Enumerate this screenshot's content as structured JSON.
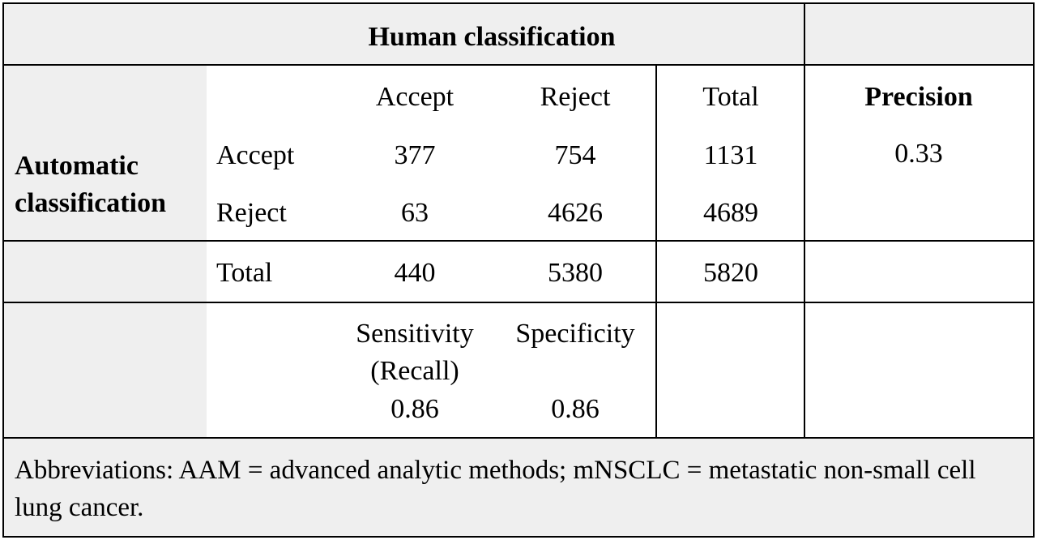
{
  "table": {
    "title": "Human classification",
    "row_group": "Automatic classification",
    "columns": [
      "Accept",
      "Reject",
      "Total"
    ],
    "precision_header": "Precision",
    "rows": [
      {
        "label": "Accept",
        "cells": [
          377,
          754,
          1131
        ],
        "precision": 0.33
      },
      {
        "label": "Reject",
        "cells": [
          63,
          4626,
          4689
        ]
      },
      {
        "label": "Total",
        "cells": [
          440,
          5380,
          5820
        ]
      }
    ],
    "metrics": [
      {
        "label": "Sensitivity (Recall)",
        "value": 0.86
      },
      {
        "label": "Specificity",
        "value": 0.86
      }
    ]
  },
  "footnote": "Abbreviations: AAM = advanced analytic methods; mNSCLC = metastatic non-small cell lung cancer."
}
